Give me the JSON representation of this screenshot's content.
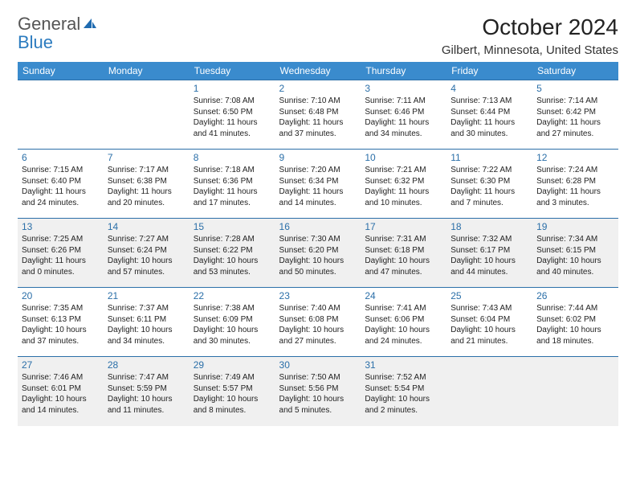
{
  "brand": {
    "part1": "General",
    "part2": "Blue"
  },
  "title": "October 2024",
  "location": "Gilbert, Minnesota, United States",
  "colors": {
    "header_bg": "#3a8bcd",
    "header_text": "#ffffff",
    "day_number": "#2b6fa8",
    "row_border": "#2b6fa8",
    "shade_bg": "#f0f0f0",
    "brand_gray": "#666666",
    "brand_blue": "#2b7bbf"
  },
  "weekdays": [
    "Sunday",
    "Monday",
    "Tuesday",
    "Wednesday",
    "Thursday",
    "Friday",
    "Saturday"
  ],
  "weeks": [
    {
      "shaded": false,
      "days": [
        null,
        null,
        {
          "n": "1",
          "sr": "7:08 AM",
          "ss": "6:50 PM",
          "dl": "11 hours and 41 minutes."
        },
        {
          "n": "2",
          "sr": "7:10 AM",
          "ss": "6:48 PM",
          "dl": "11 hours and 37 minutes."
        },
        {
          "n": "3",
          "sr": "7:11 AM",
          "ss": "6:46 PM",
          "dl": "11 hours and 34 minutes."
        },
        {
          "n": "4",
          "sr": "7:13 AM",
          "ss": "6:44 PM",
          "dl": "11 hours and 30 minutes."
        },
        {
          "n": "5",
          "sr": "7:14 AM",
          "ss": "6:42 PM",
          "dl": "11 hours and 27 minutes."
        }
      ]
    },
    {
      "shaded": false,
      "days": [
        {
          "n": "6",
          "sr": "7:15 AM",
          "ss": "6:40 PM",
          "dl": "11 hours and 24 minutes."
        },
        {
          "n": "7",
          "sr": "7:17 AM",
          "ss": "6:38 PM",
          "dl": "11 hours and 20 minutes."
        },
        {
          "n": "8",
          "sr": "7:18 AM",
          "ss": "6:36 PM",
          "dl": "11 hours and 17 minutes."
        },
        {
          "n": "9",
          "sr": "7:20 AM",
          "ss": "6:34 PM",
          "dl": "11 hours and 14 minutes."
        },
        {
          "n": "10",
          "sr": "7:21 AM",
          "ss": "6:32 PM",
          "dl": "11 hours and 10 minutes."
        },
        {
          "n": "11",
          "sr": "7:22 AM",
          "ss": "6:30 PM",
          "dl": "11 hours and 7 minutes."
        },
        {
          "n": "12",
          "sr": "7:24 AM",
          "ss": "6:28 PM",
          "dl": "11 hours and 3 minutes."
        }
      ]
    },
    {
      "shaded": true,
      "days": [
        {
          "n": "13",
          "sr": "7:25 AM",
          "ss": "6:26 PM",
          "dl": "11 hours and 0 minutes."
        },
        {
          "n": "14",
          "sr": "7:27 AM",
          "ss": "6:24 PM",
          "dl": "10 hours and 57 minutes."
        },
        {
          "n": "15",
          "sr": "7:28 AM",
          "ss": "6:22 PM",
          "dl": "10 hours and 53 minutes."
        },
        {
          "n": "16",
          "sr": "7:30 AM",
          "ss": "6:20 PM",
          "dl": "10 hours and 50 minutes."
        },
        {
          "n": "17",
          "sr": "7:31 AM",
          "ss": "6:18 PM",
          "dl": "10 hours and 47 minutes."
        },
        {
          "n": "18",
          "sr": "7:32 AM",
          "ss": "6:17 PM",
          "dl": "10 hours and 44 minutes."
        },
        {
          "n": "19",
          "sr": "7:34 AM",
          "ss": "6:15 PM",
          "dl": "10 hours and 40 minutes."
        }
      ]
    },
    {
      "shaded": false,
      "days": [
        {
          "n": "20",
          "sr": "7:35 AM",
          "ss": "6:13 PM",
          "dl": "10 hours and 37 minutes."
        },
        {
          "n": "21",
          "sr": "7:37 AM",
          "ss": "6:11 PM",
          "dl": "10 hours and 34 minutes."
        },
        {
          "n": "22",
          "sr": "7:38 AM",
          "ss": "6:09 PM",
          "dl": "10 hours and 30 minutes."
        },
        {
          "n": "23",
          "sr": "7:40 AM",
          "ss": "6:08 PM",
          "dl": "10 hours and 27 minutes."
        },
        {
          "n": "24",
          "sr": "7:41 AM",
          "ss": "6:06 PM",
          "dl": "10 hours and 24 minutes."
        },
        {
          "n": "25",
          "sr": "7:43 AM",
          "ss": "6:04 PM",
          "dl": "10 hours and 21 minutes."
        },
        {
          "n": "26",
          "sr": "7:44 AM",
          "ss": "6:02 PM",
          "dl": "10 hours and 18 minutes."
        }
      ]
    },
    {
      "shaded": true,
      "days": [
        {
          "n": "27",
          "sr": "7:46 AM",
          "ss": "6:01 PM",
          "dl": "10 hours and 14 minutes."
        },
        {
          "n": "28",
          "sr": "7:47 AM",
          "ss": "5:59 PM",
          "dl": "10 hours and 11 minutes."
        },
        {
          "n": "29",
          "sr": "7:49 AM",
          "ss": "5:57 PM",
          "dl": "10 hours and 8 minutes."
        },
        {
          "n": "30",
          "sr": "7:50 AM",
          "ss": "5:56 PM",
          "dl": "10 hours and 5 minutes."
        },
        {
          "n": "31",
          "sr": "7:52 AM",
          "ss": "5:54 PM",
          "dl": "10 hours and 2 minutes."
        },
        null,
        null
      ]
    }
  ],
  "labels": {
    "sunrise": "Sunrise:",
    "sunset": "Sunset:",
    "daylight": "Daylight:"
  }
}
